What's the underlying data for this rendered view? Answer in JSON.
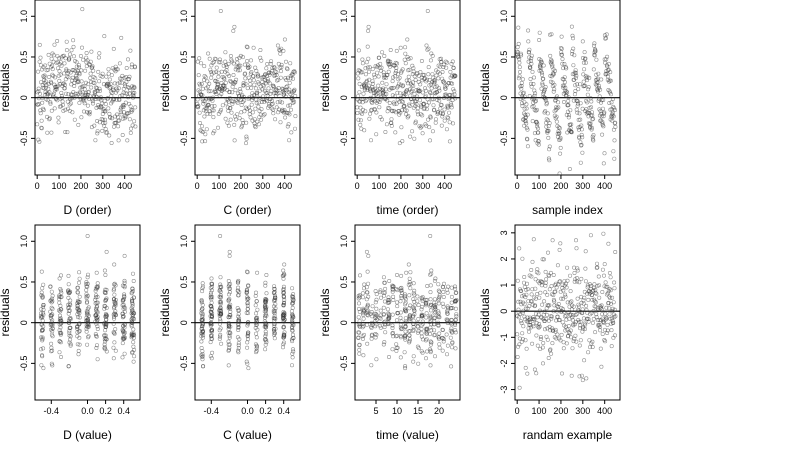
{
  "colors": {
    "point": "#333333",
    "reference_line": "#000000",
    "background": "#ffffff"
  },
  "chart_data": [
    {
      "type": "scatter",
      "title": "",
      "xlabel": "D (order)",
      "ylabel": "residuals",
      "xlim": [
        -10,
        470
      ],
      "ylim": [
        -0.95,
        1.2
      ],
      "xticks": [
        0,
        100,
        200,
        300,
        400
      ],
      "xtick_labels": [
        "0",
        "100",
        "200",
        "300",
        "400"
      ],
      "yticks": [
        -0.5,
        0,
        0.5,
        1
      ],
      "ytick_labels": [
        "-0.5",
        "0",
        "0.5",
        "1.0"
      ],
      "hline": 0,
      "grid": false,
      "data_model": {
        "n": 450,
        "x_kind": "index",
        "pattern": "ordered_D"
      },
      "description_points": []
    },
    {
      "type": "scatter",
      "title": "",
      "xlabel": "C (order)",
      "ylabel": "residuals",
      "xlim": [
        -10,
        470
      ],
      "ylim": [
        -0.95,
        1.2
      ],
      "xticks": [
        0,
        100,
        200,
        300,
        400
      ],
      "xtick_labels": [
        "0",
        "100",
        "200",
        "300",
        "400"
      ],
      "yticks": [
        -0.5,
        0,
        0.5,
        1
      ],
      "ytick_labels": [
        "-0.5",
        "0",
        "0.5",
        "1.0"
      ],
      "hline": 0,
      "grid": false,
      "data_model": {
        "n": 450,
        "x_kind": "index",
        "pattern": "ordered_C"
      },
      "description_points": []
    },
    {
      "type": "scatter",
      "title": "",
      "xlabel": "time (order)",
      "ylabel": "residuals",
      "xlim": [
        -10,
        470
      ],
      "ylim": [
        -0.95,
        1.2
      ],
      "xticks": [
        0,
        100,
        200,
        300,
        400
      ],
      "xtick_labels": [
        "0",
        "100",
        "200",
        "300",
        "400"
      ],
      "yticks": [
        -0.5,
        0,
        0.5,
        1
      ],
      "ytick_labels": [
        "-0.5",
        "0",
        "0.5",
        "1.0"
      ],
      "hline": 0,
      "grid": false,
      "data_model": {
        "n": 450,
        "x_kind": "index",
        "pattern": "ordered_time"
      },
      "description_points": []
    },
    {
      "type": "scatter",
      "title": "",
      "xlabel": "sample index",
      "ylabel": "residuals",
      "xlim": [
        -10,
        470
      ],
      "ylim": [
        -0.95,
        1.2
      ],
      "xticks": [
        0,
        100,
        200,
        300,
        400
      ],
      "xtick_labels": [
        "0",
        "100",
        "200",
        "300",
        "400"
      ],
      "yticks": [
        -0.5,
        0,
        0.5,
        1
      ],
      "ytick_labels": [
        "-0.5",
        "0",
        "0.5",
        "1.0"
      ],
      "hline": 0,
      "grid": false,
      "data_model": {
        "n": 450,
        "x_kind": "index",
        "pattern": "sawtooth"
      },
      "description_points": []
    },
    {
      "type": "scatter",
      "title": "",
      "xlabel": "D (value)",
      "ylabel": "residuals",
      "xlim": [
        -0.58,
        0.58
      ],
      "ylim": [
        -0.95,
        1.2
      ],
      "xticks": [
        -0.4,
        -0.2,
        0,
        0.2,
        0.4
      ],
      "xtick_labels": [
        "-0.4",
        "0.0",
        "0.2",
        "0.4"
      ],
      "xtick_values_shown": [
        -0.4,
        0,
        0.2,
        0.4
      ],
      "yticks": [
        -0.5,
        0,
        0.5,
        1
      ],
      "ytick_labels": [
        "-0.5",
        "0",
        "0.5",
        "1.0"
      ],
      "hline": 0,
      "grid": false,
      "data_model": {
        "n": 450,
        "x_kind": "value_D"
      },
      "description_points": []
    },
    {
      "type": "scatter",
      "title": "",
      "xlabel": "C (value)",
      "ylabel": "residuals",
      "xlim": [
        -0.58,
        0.58
      ],
      "ylim": [
        -0.95,
        1.2
      ],
      "xticks": [
        -0.4,
        0,
        0.2,
        0.4
      ],
      "xtick_labels": [
        "-0.4",
        "0.0",
        "0.2",
        "0.4"
      ],
      "yticks": [
        -0.5,
        0,
        0.5,
        1
      ],
      "ytick_labels": [
        "-0.5",
        "0",
        "0.5",
        "1.0"
      ],
      "hline": 0,
      "grid": false,
      "data_model": {
        "n": 450,
        "x_kind": "value_C"
      },
      "description_points": []
    },
    {
      "type": "scatter",
      "title": "",
      "xlabel": "time (value)",
      "ylabel": "residuals",
      "xlim": [
        0,
        25
      ],
      "ylim": [
        -0.95,
        1.2
      ],
      "xticks": [
        5,
        10,
        15,
        20
      ],
      "xtick_labels": [
        "5",
        "10",
        "15",
        "20"
      ],
      "yticks": [
        -0.5,
        0,
        0.5,
        1
      ],
      "ytick_labels": [
        "-0.5",
        "0",
        "0.5",
        "1.0"
      ],
      "hline": 0,
      "grid": false,
      "data_model": {
        "n": 450,
        "x_kind": "value_time"
      },
      "description_points": []
    },
    {
      "type": "scatter",
      "title": "",
      "xlabel": "randam example",
      "ylabel": "residuals",
      "xlim": [
        -10,
        470
      ],
      "ylim": [
        -3.4,
        3.3
      ],
      "xticks": [
        0,
        100,
        200,
        300,
        400
      ],
      "xtick_labels": [
        "0",
        "100",
        "200",
        "300",
        "400"
      ],
      "yticks": [
        -3,
        -2,
        -1,
        0,
        1,
        2,
        3
      ],
      "ytick_labels": [
        "-3",
        "-2",
        "-1",
        "0",
        "1",
        "2",
        "3"
      ],
      "hline": 0,
      "grid": false,
      "data_model": {
        "n": 450,
        "x_kind": "index",
        "pattern": "random_normal"
      },
      "description_points": []
    }
  ]
}
